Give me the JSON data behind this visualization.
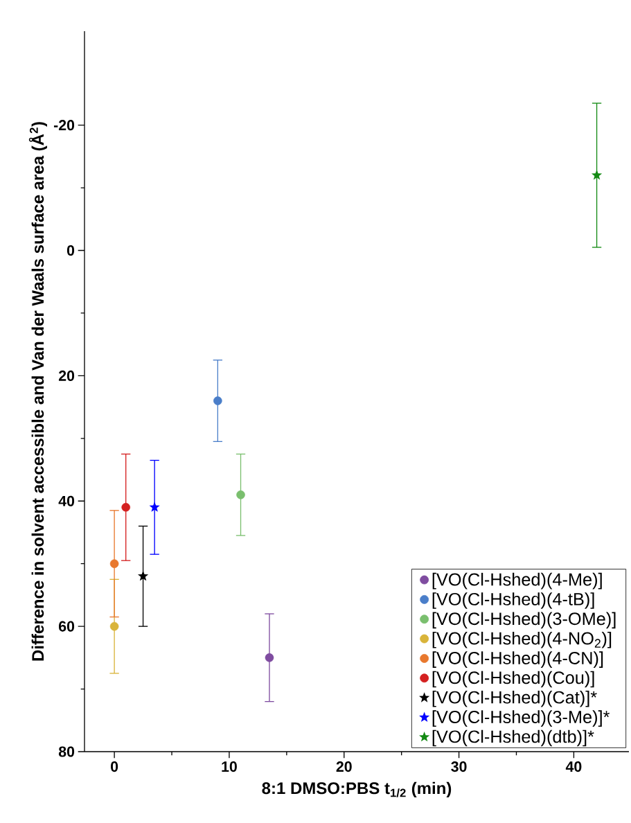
{
  "chart_data": {
    "type": "scatter",
    "xlabel": "8:1 DMSO:PBS t$_{1/2}$ (min)",
    "ylabel": "Difference in solvent accessible and Van der Waals surface area (Å$^{2}$)",
    "xlim": [
      -2.6,
      44.8
    ],
    "ylim": [
      80,
      -35
    ],
    "xticks": [
      0,
      10,
      20,
      30,
      40
    ],
    "yticks": [
      -20,
      0,
      20,
      40,
      60,
      80
    ],
    "legend": "bottom right",
    "series": [
      {
        "name": "[VO(Cl-Hshed)(4-Me)]",
        "color": "#7f4ca0",
        "marker": "circle",
        "x": [
          13.5
        ],
        "values": [
          65
        ],
        "errors": [
          7
        ]
      },
      {
        "name": "[VO(Cl-Hshed)(4-tB)]",
        "color": "#4a7ec9",
        "marker": "circle",
        "x": [
          9
        ],
        "values": [
          24
        ],
        "errors": [
          6.5
        ]
      },
      {
        "name": "[VO(Cl-Hshed)(3-OMe)]",
        "color": "#7abf6e",
        "marker": "circle",
        "x": [
          11
        ],
        "values": [
          39
        ],
        "errors": [
          6.5
        ]
      },
      {
        "name": "[VO(Cl-Hshed)(4-NO$_{2}$)]",
        "color": "#d9b43a",
        "marker": "circle",
        "x": [
          0
        ],
        "values": [
          60
        ],
        "errors": [
          7.5
        ]
      },
      {
        "name": "[VO(Cl-Hshed)(4-CN)]",
        "color": "#e8782e",
        "marker": "circle",
        "x": [
          0
        ],
        "values": [
          50
        ],
        "errors": [
          8.5
        ]
      },
      {
        "name": "[VO(Cl-Hshed)(Cou)]",
        "color": "#d42020",
        "marker": "circle",
        "x": [
          1
        ],
        "values": [
          41
        ],
        "errors": [
          8.5
        ]
      },
      {
        "name": "[VO(Cl-Hshed)(Cat)]*",
        "color": "#000000",
        "marker": "star",
        "x": [
          2.5
        ],
        "values": [
          52
        ],
        "errors": [
          8
        ]
      },
      {
        "name": "[VO(Cl-Hshed)(3-Me)]*",
        "color": "#0000ff",
        "marker": "star",
        "x": [
          3.5
        ],
        "values": [
          41
        ],
        "errors": [
          7.5
        ]
      },
      {
        "name": "[VO(Cl-Hshed)(dtb)]*",
        "color": "#138a13",
        "marker": "star",
        "x": [
          42
        ],
        "values": [
          -12
        ],
        "errors": [
          11.5
        ]
      }
    ]
  }
}
